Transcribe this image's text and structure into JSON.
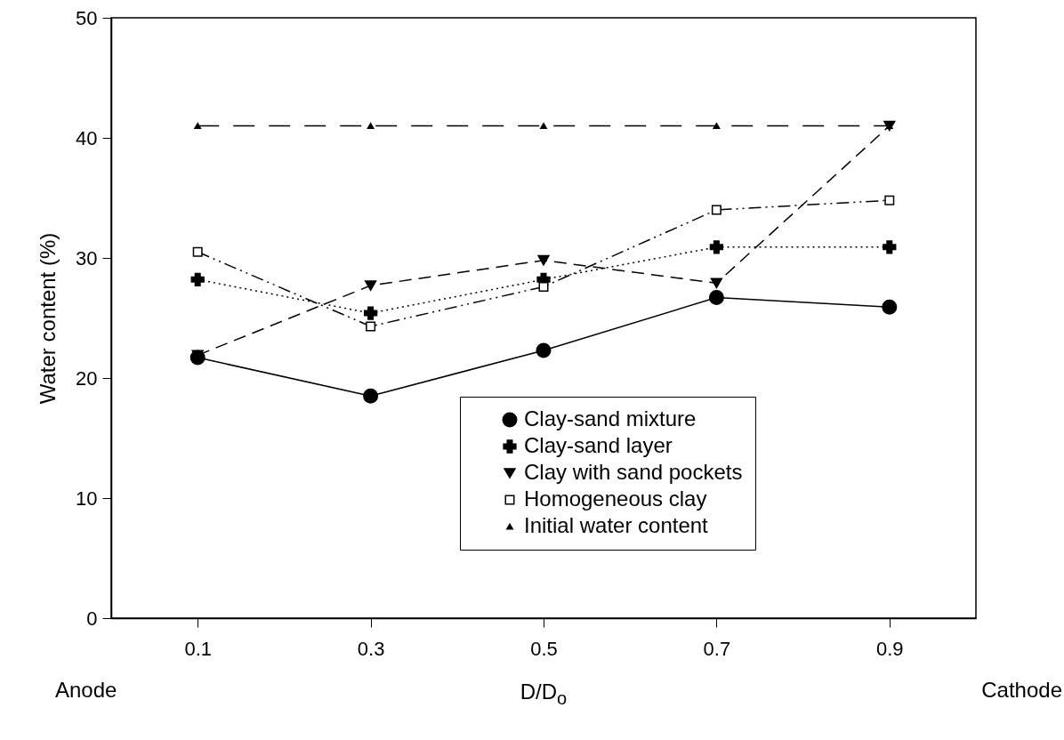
{
  "chart_data": {
    "type": "line",
    "xlabel": "D/D$_{o}$",
    "ylabel": "Water content (%)",
    "annotations": [
      "Anode",
      "Cathode"
    ],
    "x": [
      0.1,
      0.3,
      0.5,
      0.7,
      0.9
    ],
    "xlim": [
      0,
      1
    ],
    "xticks": [
      0.1,
      0.3,
      0.5,
      0.7,
      0.9
    ],
    "ylim": [
      0,
      50
    ],
    "yticks": [
      0,
      10,
      20,
      30,
      40,
      50
    ],
    "grid": false,
    "legend": "bottom right",
    "series": [
      {
        "name": "Clay-sand mixture",
        "color": "#000000",
        "marker": "circle",
        "line_style": "solid",
        "values": [
          21.7,
          18.5,
          22.3,
          26.7,
          25.9
        ]
      },
      {
        "name": "Clay-sand layer",
        "color": "#000000",
        "marker": "cross",
        "line_style": "dotted",
        "values": [
          28.2,
          25.4,
          28.2,
          30.9,
          30.9
        ]
      },
      {
        "name": "Clay with sand pockets",
        "color": "#000000",
        "marker": "triangle-down",
        "line_style": "dashed",
        "values": [
          21.9,
          27.7,
          29.8,
          27.9,
          41.0
        ]
      },
      {
        "name": "Homogeneous clay",
        "color": "#000000",
        "marker": "square",
        "line_style": "dashdotdot",
        "values": [
          30.5,
          24.3,
          27.6,
          34.0,
          34.8
        ]
      },
      {
        "name": "Initial water content",
        "color": "#000000",
        "marker": "triangle",
        "line_style": "longdash",
        "values": [
          41,
          41,
          41,
          41,
          41
        ]
      }
    ]
  }
}
